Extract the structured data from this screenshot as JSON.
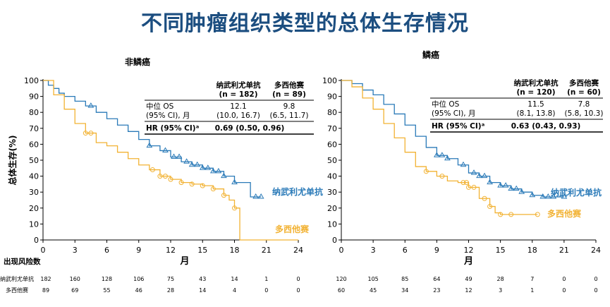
{
  "title": "不同肿瘤组织类型的总体生存情况",
  "colors": {
    "nivo": "#2a7ab8",
    "doce": "#f2b233"
  },
  "y_axis_label": "总体生存(%)",
  "x_axis_label": "月",
  "risk_label": "出现风险数",
  "chart_data": [
    {
      "type": "line",
      "subtitle": "非鳞癌",
      "xlim": [
        0,
        24
      ],
      "ylim": [
        0,
        100
      ],
      "x_ticks": [
        0,
        3,
        6,
        9,
        12,
        15,
        18,
        21,
        24
      ],
      "y_ticks": [
        0,
        10,
        20,
        30,
        40,
        50,
        60,
        70,
        80,
        90,
        100
      ],
      "series": [
        {
          "name": "纳武利尤单抗",
          "color": "#2a7ab8",
          "marker": "triangle",
          "x": [
            0,
            0.5,
            1,
            1.5,
            2,
            3,
            4,
            5,
            6,
            7,
            8,
            9,
            10,
            11,
            12,
            13,
            14,
            15,
            16,
            17,
            18,
            19.5,
            20.5
          ],
          "y": [
            100,
            97,
            95,
            92,
            90,
            87,
            84,
            80,
            76,
            72,
            68,
            63,
            59,
            56,
            52,
            49,
            47,
            45,
            43,
            40,
            36,
            27,
            27
          ],
          "censors_x": [
            4.5,
            10,
            11.5,
            12.3,
            12.8,
            13.5,
            14,
            14.5,
            15,
            15.5,
            16,
            16.5,
            17,
            18,
            20,
            20.5
          ]
        },
        {
          "name": "多西他赛",
          "color": "#f2b233",
          "marker": "circle",
          "x": [
            0,
            1,
            2,
            3,
            4,
            5,
            6,
            7,
            8,
            9,
            10,
            11,
            12,
            13,
            14,
            15,
            16,
            17,
            17.5,
            18,
            18.5,
            18.5,
            24
          ],
          "y": [
            100,
            91,
            82,
            73,
            67,
            61,
            59,
            55,
            51,
            47,
            44,
            40,
            38,
            36,
            35,
            34,
            32,
            28,
            25,
            20,
            15,
            0,
            0
          ],
          "censors_x": [
            4,
            4.5,
            10.3,
            11,
            11.5,
            12,
            13,
            14,
            15,
            16,
            17,
            18
          ]
        }
      ],
      "table": {
        "headers": [
          "纳武利尤单抗",
          "多西他赛"
        ],
        "n": [
          "(n = 182)",
          "(n = 89)"
        ],
        "row1_label": "中位 OS",
        "row2_label": "(95% CI), 月",
        "median": [
          "12.1",
          "9.8"
        ],
        "ci": [
          "(10.0, 16.7)",
          "(6.5, 11.7)"
        ],
        "hr_label": "HR (95% CI)ᵃ",
        "hr": "0.69 (0.50, 0.96)"
      },
      "risk": {
        "nivo_label": "纳武利尤单抗",
        "doce_label": "多西他赛",
        "nivo": [
          "182",
          "160",
          "128",
          "106",
          "75",
          "43",
          "14",
          "1",
          "0"
        ],
        "doce": [
          "89",
          "69",
          "55",
          "46",
          "28",
          "14",
          "4",
          "0",
          "0"
        ]
      }
    },
    {
      "type": "line",
      "subtitle": "鳞癌",
      "xlim": [
        0,
        24
      ],
      "ylim": [
        0,
        100
      ],
      "x_ticks": [
        0,
        3,
        6,
        9,
        12,
        15,
        18,
        21,
        24
      ],
      "y_ticks": [
        0,
        10,
        20,
        30,
        40,
        50,
        60,
        70,
        80,
        90,
        100
      ],
      "series": [
        {
          "name": "纳武利尤单抗",
          "color": "#2a7ab8",
          "marker": "triangle",
          "x": [
            0,
            1,
            2,
            3,
            4,
            5,
            6,
            7,
            8,
            9,
            10,
            11,
            12,
            13,
            14,
            15,
            16,
            17,
            18,
            19,
            20,
            21
          ],
          "y": [
            100,
            98,
            94,
            91,
            85,
            79,
            72,
            65,
            58,
            53,
            51,
            47,
            42,
            40,
            36,
            34,
            32,
            30,
            28,
            27,
            27,
            27
          ],
          "censors_x": [
            9,
            9.5,
            10,
            11.5,
            12.5,
            13,
            13.5,
            14,
            15,
            15.5,
            16,
            16.5,
            17,
            18,
            19,
            19.5,
            20,
            21
          ]
        },
        {
          "name": "多西他赛",
          "color": "#f2b233",
          "marker": "circle",
          "x": [
            0,
            1,
            2,
            3,
            4,
            5,
            6,
            7,
            8,
            9,
            10,
            11,
            12,
            13,
            14,
            14.5,
            15,
            16,
            17,
            18.5
          ],
          "y": [
            100,
            96,
            89,
            82,
            73,
            64,
            55,
            46,
            43,
            40,
            37,
            36,
            33,
            26,
            21,
            17,
            16,
            16,
            16,
            16
          ],
          "censors_x": [
            8,
            9.5,
            11.5,
            11.8,
            12,
            12.5,
            13.5,
            14,
            15,
            16,
            18.5
          ]
        }
      ],
      "table": {
        "headers": [
          "纳武利尤单抗",
          "多西他赛"
        ],
        "n": [
          "(n = 120)",
          "(n = 60)"
        ],
        "row1_label": "中位 OS",
        "row2_label": "(95% CI), 月",
        "median": [
          "11.5",
          "7.8"
        ],
        "ci": [
          "(8.1, 13.8)",
          "(5.8, 10.3)"
        ],
        "hr_label": "HR (95% CI)ᵃ",
        "hr": "0.63 (0.43, 0.93)"
      },
      "risk": {
        "nivo": [
          "120",
          "105",
          "85",
          "64",
          "49",
          "28",
          "7",
          "0",
          "0"
        ],
        "doce": [
          "60",
          "45",
          "34",
          "23",
          "12",
          "3",
          "1",
          "0",
          "0"
        ]
      }
    }
  ]
}
